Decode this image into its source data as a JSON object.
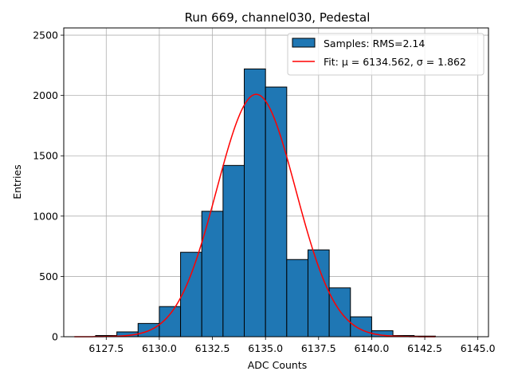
{
  "chart_data": {
    "type": "bar",
    "title": "Run 669, channel030, Pedestal",
    "xlabel": "ADC Counts",
    "ylabel": "Entries",
    "xlim": [
      6125.5,
      6145.5
    ],
    "ylim": [
      0,
      2560
    ],
    "grid": true,
    "legend_placement": "top-right",
    "x_ticks": [
      6127.5,
      6130.0,
      6132.5,
      6135.0,
      6137.5,
      6140.0,
      6142.5,
      6145.0
    ],
    "x_tick_labels": [
      "6127.5",
      "6130.0",
      "6132.5",
      "6135.0",
      "6137.5",
      "6140.0",
      "6142.5",
      "6145.0"
    ],
    "y_ticks": [
      0,
      500,
      1000,
      1500,
      2000,
      2500
    ],
    "y_tick_labels": [
      "0",
      "500",
      "1000",
      "1500",
      "2000",
      "2500"
    ],
    "histogram": {
      "name": "Samples: RMS=2.14",
      "color": "#1f77b4",
      "edge_color": "#000000",
      "bin_width": 1,
      "bin_starts": [
        6127,
        6128,
        6129,
        6130,
        6131,
        6132,
        6133,
        6134,
        6135,
        6136,
        6137,
        6138,
        6139,
        6140,
        6141,
        6142
      ],
      "counts": [
        10,
        40,
        110,
        250,
        700,
        1040,
        1420,
        2220,
        2070,
        640,
        720,
        405,
        165,
        50,
        10,
        5
      ]
    },
    "fit": {
      "name": "Fit: μ = 6134.562, σ = 1.862",
      "color": "#ff0000",
      "mu": 6134.562,
      "sigma": 1.862,
      "amplitude": 2010,
      "x_range": [
        6126,
        6143
      ]
    }
  }
}
